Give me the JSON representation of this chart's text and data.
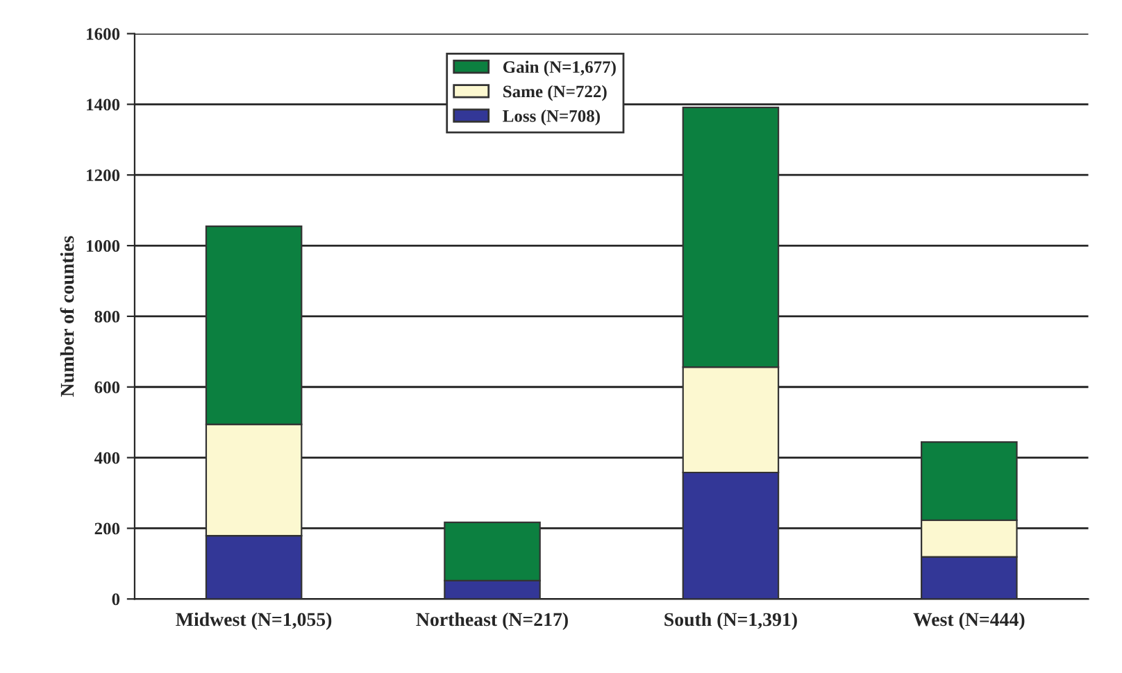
{
  "chart_data": {
    "type": "bar",
    "stacked": true,
    "ylabel": "Number of counties",
    "categories": [
      "Midwest (N=1,055)",
      "Northeast (N=217)",
      "South (N=1,391)",
      "West (N=444)"
    ],
    "series": [
      {
        "name": "Loss (N=708)",
        "color": "#333797",
        "values": [
          179,
          52,
          358,
          119
        ]
      },
      {
        "name": "Same (N=722)",
        "color": "#fcf8d0",
        "values": [
          315,
          null,
          298,
          104
        ]
      },
      {
        "name": "Gain (N=1,677)",
        "color": "#0c8040",
        "values": [
          561,
          165,
          735,
          221
        ]
      }
    ],
    "ylim": [
      0,
      1600
    ],
    "yticks": [
      0,
      200,
      400,
      600,
      800,
      1000,
      1200,
      1400,
      1600
    ],
    "grid": "y",
    "legend": "top"
  }
}
